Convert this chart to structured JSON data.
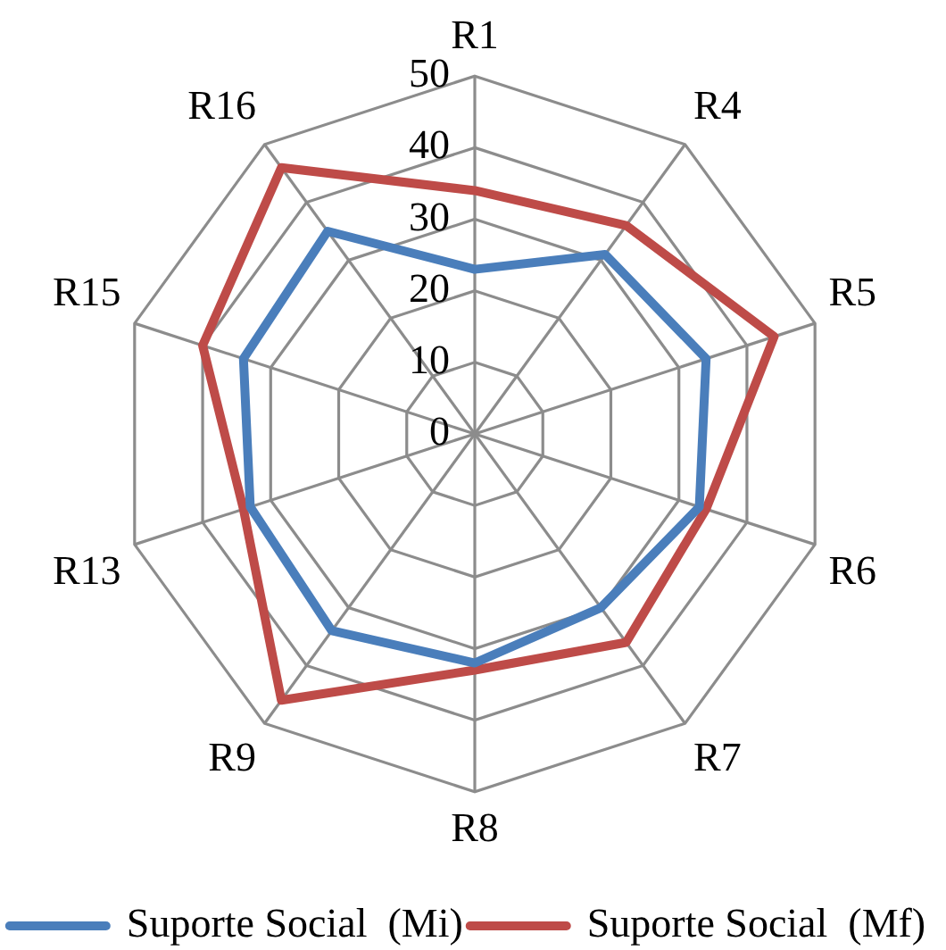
{
  "chart_data": {
    "type": "radar",
    "categories": [
      "R1",
      "R4",
      "R5",
      "R6",
      "R7",
      "R8",
      "R9",
      "R13",
      "R15",
      "R16"
    ],
    "series": [
      {
        "name": "Suporte Social  (Mi)",
        "color": "#4a7ebb",
        "values": [
          23,
          31,
          34,
          33,
          30,
          32,
          34,
          33,
          34,
          35
        ]
      },
      {
        "name": "Suporte Social  (Mf)",
        "color": "#be4b48",
        "values": [
          34,
          36,
          44,
          34,
          36,
          33,
          46,
          34,
          40,
          46
        ]
      }
    ],
    "ylim": [
      0,
      50
    ],
    "yticks": [
      0,
      10,
      20,
      30,
      40,
      50
    ],
    "grid": true,
    "legend": "bottom",
    "marker": "none"
  }
}
